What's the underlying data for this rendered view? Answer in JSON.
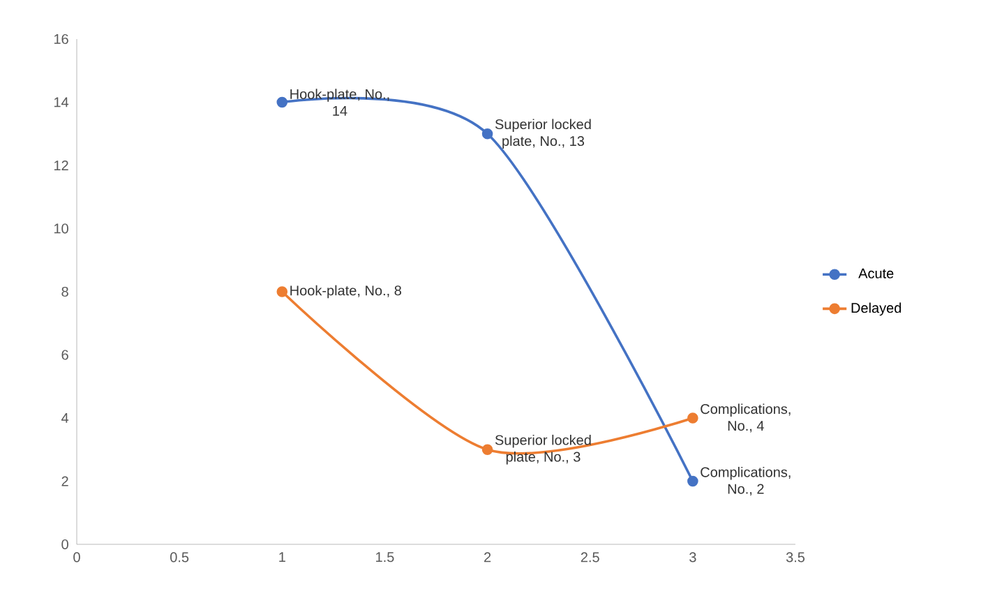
{
  "chart_data": {
    "type": "line",
    "x": [
      1,
      2,
      3
    ],
    "series": [
      {
        "name": "Acute",
        "color": "#4472c4",
        "values": [
          14,
          13,
          2
        ],
        "value_labels": [
          "Hook-plate, No., 14",
          "Superior locked plate, No., 13",
          "Complications, No., 2"
        ]
      },
      {
        "name": "Delayed",
        "color": "#ed7d31",
        "values": [
          8,
          3,
          4
        ],
        "value_labels": [
          "Hook-plate, No., 8",
          "Superior locked plate, No., 3",
          "Complications, No., 4"
        ]
      }
    ],
    "xlim": [
      0,
      3.5
    ],
    "xticks": [
      0,
      0.5,
      1,
      1.5,
      2,
      2.5,
      3,
      3.5
    ],
    "ylim": [
      0,
      16
    ],
    "yticks": [
      0,
      2,
      4,
      6,
      8,
      10,
      12,
      14,
      16
    ],
    "legend": "right",
    "marker": "circle",
    "line_style": "solid"
  }
}
